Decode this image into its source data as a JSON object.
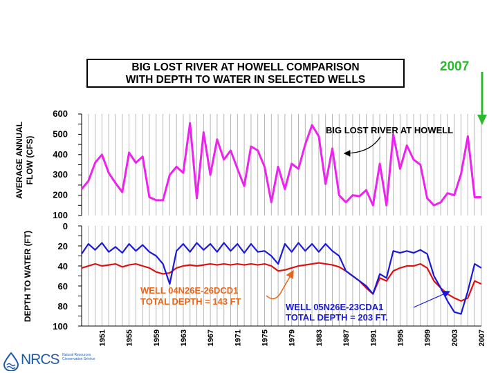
{
  "title": {
    "line1": "BIG LOST RIVER AT HOWELL COMPARISON",
    "line2": "WITH DEPTH TO WATER IN SELECTED WELLS"
  },
  "year_marker": "2007",
  "colors": {
    "river": "#ee22ee",
    "well_blue": "#1a1ad6",
    "well_red": "#dd1111",
    "orange": "#e8661a",
    "year_green": "#2db82d"
  },
  "logo": {
    "text": "NRCS",
    "small": "Natural Resources Conservation Service"
  },
  "chart_data": [
    {
      "type": "line",
      "ylabel": "AVERAGE ANNUAL FLOW (CFS)",
      "ylim": [
        100,
        600
      ],
      "yticks": [
        "600",
        "500",
        "400",
        "300",
        "200",
        "100"
      ],
      "annotation": "BIG LOST RIVER AT HOWELL",
      "series": [
        {
          "name": "BIG LOST RIVER AT HOWELL",
          "x": [
            1948,
            1949,
            1950,
            1951,
            1952,
            1953,
            1954,
            1955,
            1956,
            1957,
            1958,
            1959,
            1960,
            1961,
            1962,
            1963,
            1964,
            1965,
            1966,
            1967,
            1968,
            1969,
            1970,
            1971,
            1972,
            1973,
            1974,
            1975,
            1976,
            1977,
            1978,
            1979,
            1980,
            1981,
            1982,
            1983,
            1984,
            1985,
            1986,
            1987,
            1988,
            1989,
            1990,
            1991,
            1992,
            1993,
            1994,
            1995,
            1996,
            1997,
            1998,
            1999,
            2000,
            2001,
            2002,
            2003,
            2004,
            2005,
            2006,
            2007
          ],
          "values": [
            230,
            270,
            360,
            400,
            310,
            260,
            215,
            410,
            360,
            390,
            190,
            175,
            175,
            300,
            340,
            310,
            555,
            185,
            510,
            300,
            475,
            375,
            420,
            330,
            245,
            440,
            420,
            340,
            165,
            340,
            230,
            355,
            330,
            450,
            545,
            490,
            255,
            430,
            200,
            165,
            200,
            195,
            225,
            150,
            355,
            150,
            500,
            330,
            445,
            375,
            350,
            185,
            150,
            165,
            210,
            200,
            305,
            490,
            190,
            190
          ]
        }
      ]
    },
    {
      "type": "line",
      "ylabel": "DEPTH TO WATER (FT)",
      "ylim": [
        0,
        100
      ],
      "y_inverted": true,
      "yticks": [
        "0",
        "20",
        "40",
        "60",
        "80",
        "100"
      ],
      "xlabel_ticks": [
        "1951",
        "1955",
        "1959",
        "1963",
        "1967",
        "1971",
        "1975",
        "1979",
        "1983",
        "1987",
        "1991",
        "1995",
        "1999",
        "2003",
        "2007"
      ],
      "series": [
        {
          "name": "WELL 05N26E-23CDA1",
          "label_line2": "TOTAL DEPTH = 203 FT.",
          "x": [
            1948,
            1949,
            1950,
            1951,
            1952,
            1953,
            1954,
            1955,
            1956,
            1957,
            1958,
            1959,
            1960,
            1961,
            1962,
            1963,
            1964,
            1965,
            1966,
            1967,
            1968,
            1969,
            1970,
            1971,
            1972,
            1973,
            1974,
            1975,
            1976,
            1977,
            1978,
            1979,
            1980,
            1981,
            1982,
            1983,
            1984,
            1985,
            1986,
            1987,
            1988,
            1989,
            1990,
            1991,
            1992,
            1993,
            1994,
            1995,
            1996,
            1997,
            1998,
            1999,
            2000,
            2001,
            2002,
            2003,
            2004,
            2005,
            2006,
            2007
          ],
          "values": [
            28,
            18,
            24,
            17,
            26,
            21,
            27,
            18,
            25,
            19,
            26,
            30,
            38,
            58,
            25,
            18,
            26,
            17,
            24,
            18,
            26,
            17,
            25,
            18,
            27,
            18,
            26,
            25,
            30,
            38,
            18,
            26,
            17,
            25,
            18,
            26,
            18,
            25,
            30,
            45,
            50,
            55,
            60,
            68,
            48,
            52,
            25,
            27,
            25,
            27,
            24,
            28,
            50,
            62,
            75,
            86,
            88,
            65,
            38,
            42
          ]
        },
        {
          "name": "WELL 04N26E-26DCD1",
          "label_line2": "TOTAL DEPTH = 143 FT",
          "x": [
            1948,
            1949,
            1950,
            1951,
            1952,
            1953,
            1954,
            1955,
            1956,
            1957,
            1958,
            1959,
            1960,
            1961,
            1962,
            1963,
            1964,
            1965,
            1966,
            1967,
            1968,
            1969,
            1970,
            1971,
            1972,
            1973,
            1974,
            1975,
            1976,
            1977,
            1978,
            1979,
            1980,
            1981,
            1982,
            1983,
            1984,
            1985,
            1986,
            1987,
            1988,
            1989,
            1990,
            1991,
            1992,
            1993,
            1994,
            1995,
            1996,
            1997,
            1998,
            1999,
            2000,
            2001,
            2002,
            2003,
            2004,
            2005,
            2006,
            2007
          ],
          "values": [
            42,
            40,
            38,
            40,
            39,
            38,
            41,
            39,
            38,
            40,
            42,
            46,
            48,
            47,
            42,
            40,
            39,
            40,
            39,
            38,
            39,
            38,
            39,
            38,
            39,
            38,
            39,
            38,
            40,
            45,
            44,
            42,
            40,
            39,
            38,
            37,
            38,
            39,
            41,
            45,
            50,
            55,
            62,
            68,
            52,
            55,
            45,
            42,
            40,
            40,
            38,
            42,
            55,
            62,
            68,
            72,
            75,
            72,
            55,
            58
          ]
        }
      ]
    }
  ]
}
